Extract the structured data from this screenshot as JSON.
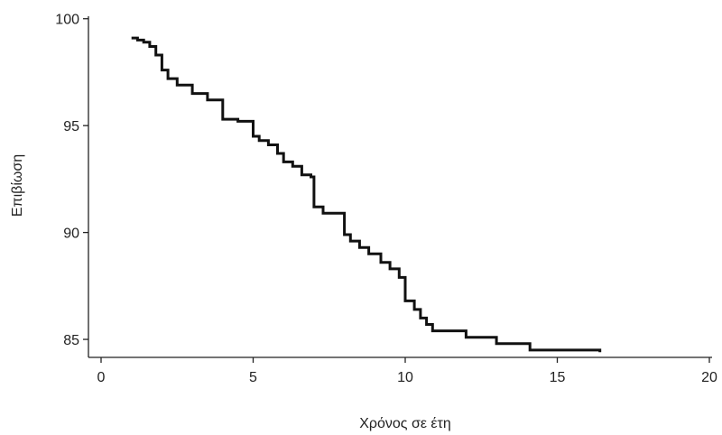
{
  "chart_data": {
    "type": "line",
    "title": "",
    "xlabel": "Χρόνος σε έτη",
    "ylabel": "Επιβίωση",
    "xlim": [
      0,
      20
    ],
    "ylim": [
      84.2,
      100.2
    ],
    "xticks": [
      0,
      5,
      10,
      15,
      20
    ],
    "yticks": [
      85,
      90,
      95,
      100
    ],
    "xtick_labels": [
      "0",
      "5",
      "10",
      "15",
      "20"
    ],
    "ytick_labels": [
      "85",
      "90",
      "95",
      "100"
    ],
    "grid": false,
    "line_color": "#111111",
    "step": true,
    "series": [
      {
        "x": [
          1.0,
          1.2,
          1.4,
          1.6,
          1.8,
          2.0,
          2.2,
          2.5,
          3.0,
          3.5,
          4.0,
          4.5,
          5.0,
          5.2,
          5.5,
          5.8,
          6.0,
          6.3,
          6.6,
          6.9,
          7.0,
          7.3,
          8.0,
          8.2,
          8.5,
          8.8,
          9.2,
          9.5,
          9.8,
          10.0,
          10.3,
          10.5,
          10.7,
          10.9,
          12.0,
          13.0,
          14.1,
          16.4
        ],
        "y": [
          99.1,
          99.0,
          98.9,
          98.7,
          98.3,
          97.6,
          97.2,
          96.9,
          96.5,
          96.2,
          95.3,
          95.2,
          94.5,
          94.3,
          94.1,
          93.7,
          93.3,
          93.1,
          92.7,
          92.6,
          91.2,
          90.9,
          89.9,
          89.6,
          89.3,
          89.0,
          88.6,
          88.3,
          87.9,
          86.8,
          86.4,
          86.0,
          85.7,
          85.4,
          85.1,
          84.8,
          84.5,
          84.4
        ]
      }
    ]
  }
}
